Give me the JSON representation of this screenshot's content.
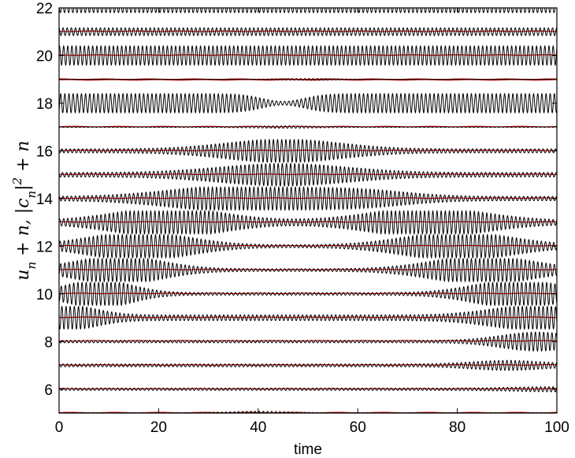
{
  "chart_data": {
    "type": "line",
    "xlabel": "time",
    "ylabel": "u_n + n, |c_n|^2 + n",
    "xlim": [
      0,
      100
    ],
    "ylim": [
      5,
      22
    ],
    "xticks": [
      0,
      20,
      40,
      60,
      80,
      100
    ],
    "yticks": [
      6,
      8,
      10,
      12,
      14,
      16,
      18,
      20,
      22
    ],
    "ytick_labels": [
      "6",
      "8",
      "10",
      "12",
      "14",
      "16",
      "18",
      "20",
      "22"
    ],
    "grid": false,
    "series": [
      {
        "kind": "displacement",
        "color": "#000000",
        "oscillation_frequency": 1.2,
        "offsets": [
          5,
          6,
          7,
          8,
          9,
          10,
          11,
          12,
          13,
          14,
          15,
          16,
          17,
          18,
          19,
          20,
          21,
          22
        ],
        "envelope_peak_amplitude": [
          0.06,
          0.1,
          0.15,
          0.35,
          0.4,
          0.55,
          0.55,
          0.55,
          0.55,
          0.45,
          0.38,
          0.42,
          0.12,
          0.4,
          0.03,
          0.4,
          0.18,
          0.2
        ]
      },
      {
        "kind": "probability",
        "color": "#cc0000",
        "offsets": [
          5,
          6,
          7,
          8,
          9,
          10,
          11,
          12,
          13,
          14,
          15,
          16,
          17,
          18,
          19,
          20,
          21,
          22
        ],
        "level_above_offset": [
          0.02,
          0.02,
          0.02,
          0.03,
          0.02,
          0.02,
          0.02,
          0.02,
          0.02,
          0.02,
          0.02,
          0.02,
          0.02,
          0.98,
          0.01,
          0.02,
          0.02,
          0.02
        ]
      }
    ]
  }
}
